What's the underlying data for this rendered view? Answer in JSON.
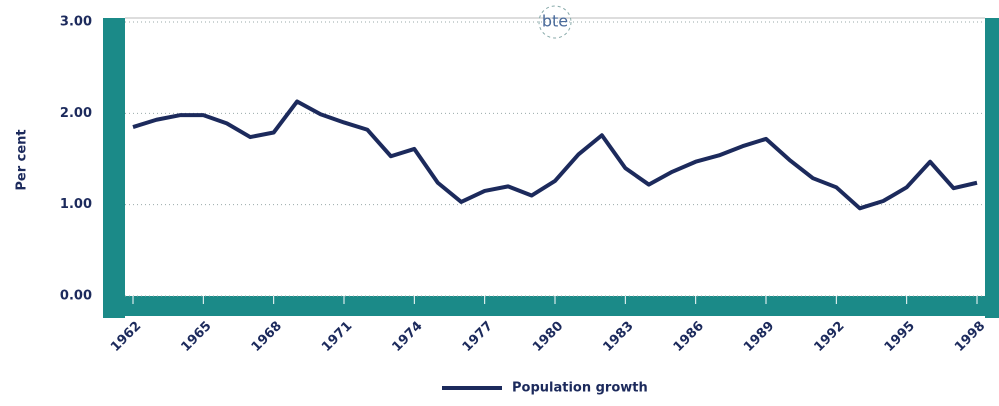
{
  "chart_data": {
    "type": "line",
    "logo": "bte",
    "ylabel": "Per cent",
    "x": [
      1962,
      1963,
      1964,
      1965,
      1966,
      1967,
      1968,
      1969,
      1970,
      1971,
      1972,
      1973,
      1974,
      1975,
      1976,
      1977,
      1978,
      1979,
      1980,
      1981,
      1982,
      1983,
      1984,
      1985,
      1986,
      1987,
      1988,
      1989,
      1990,
      1991,
      1992,
      1993,
      1994,
      1995,
      1996,
      1997,
      1998
    ],
    "series": [
      {
        "name": "Population growth",
        "color": "#1c2a5c",
        "values": [
          1.85,
          1.93,
          1.98,
          1.98,
          1.89,
          1.74,
          1.79,
          2.13,
          1.99,
          1.9,
          1.82,
          1.53,
          1.61,
          1.24,
          1.03,
          1.15,
          1.2,
          1.1,
          1.26,
          1.55,
          1.76,
          1.4,
          1.22,
          1.36,
          1.47,
          1.54,
          1.64,
          1.72,
          1.49,
          1.29,
          1.19,
          0.96,
          1.04,
          1.19,
          1.47,
          1.18,
          1.24
        ]
      }
    ],
    "xlim": [
      1962,
      1998
    ],
    "xticks": [
      1962,
      1965,
      1968,
      1971,
      1974,
      1977,
      1980,
      1983,
      1986,
      1989,
      1992,
      1995,
      1998
    ],
    "ylim": [
      0,
      3
    ],
    "yticks": [
      {
        "value": 0,
        "label": "0.00"
      },
      {
        "value": 1,
        "label": "1.00"
      },
      {
        "value": 2,
        "label": "2.00"
      },
      {
        "value": 3,
        "label": "3.00"
      }
    ],
    "grid": true,
    "frame_color": "#1b8a88"
  }
}
